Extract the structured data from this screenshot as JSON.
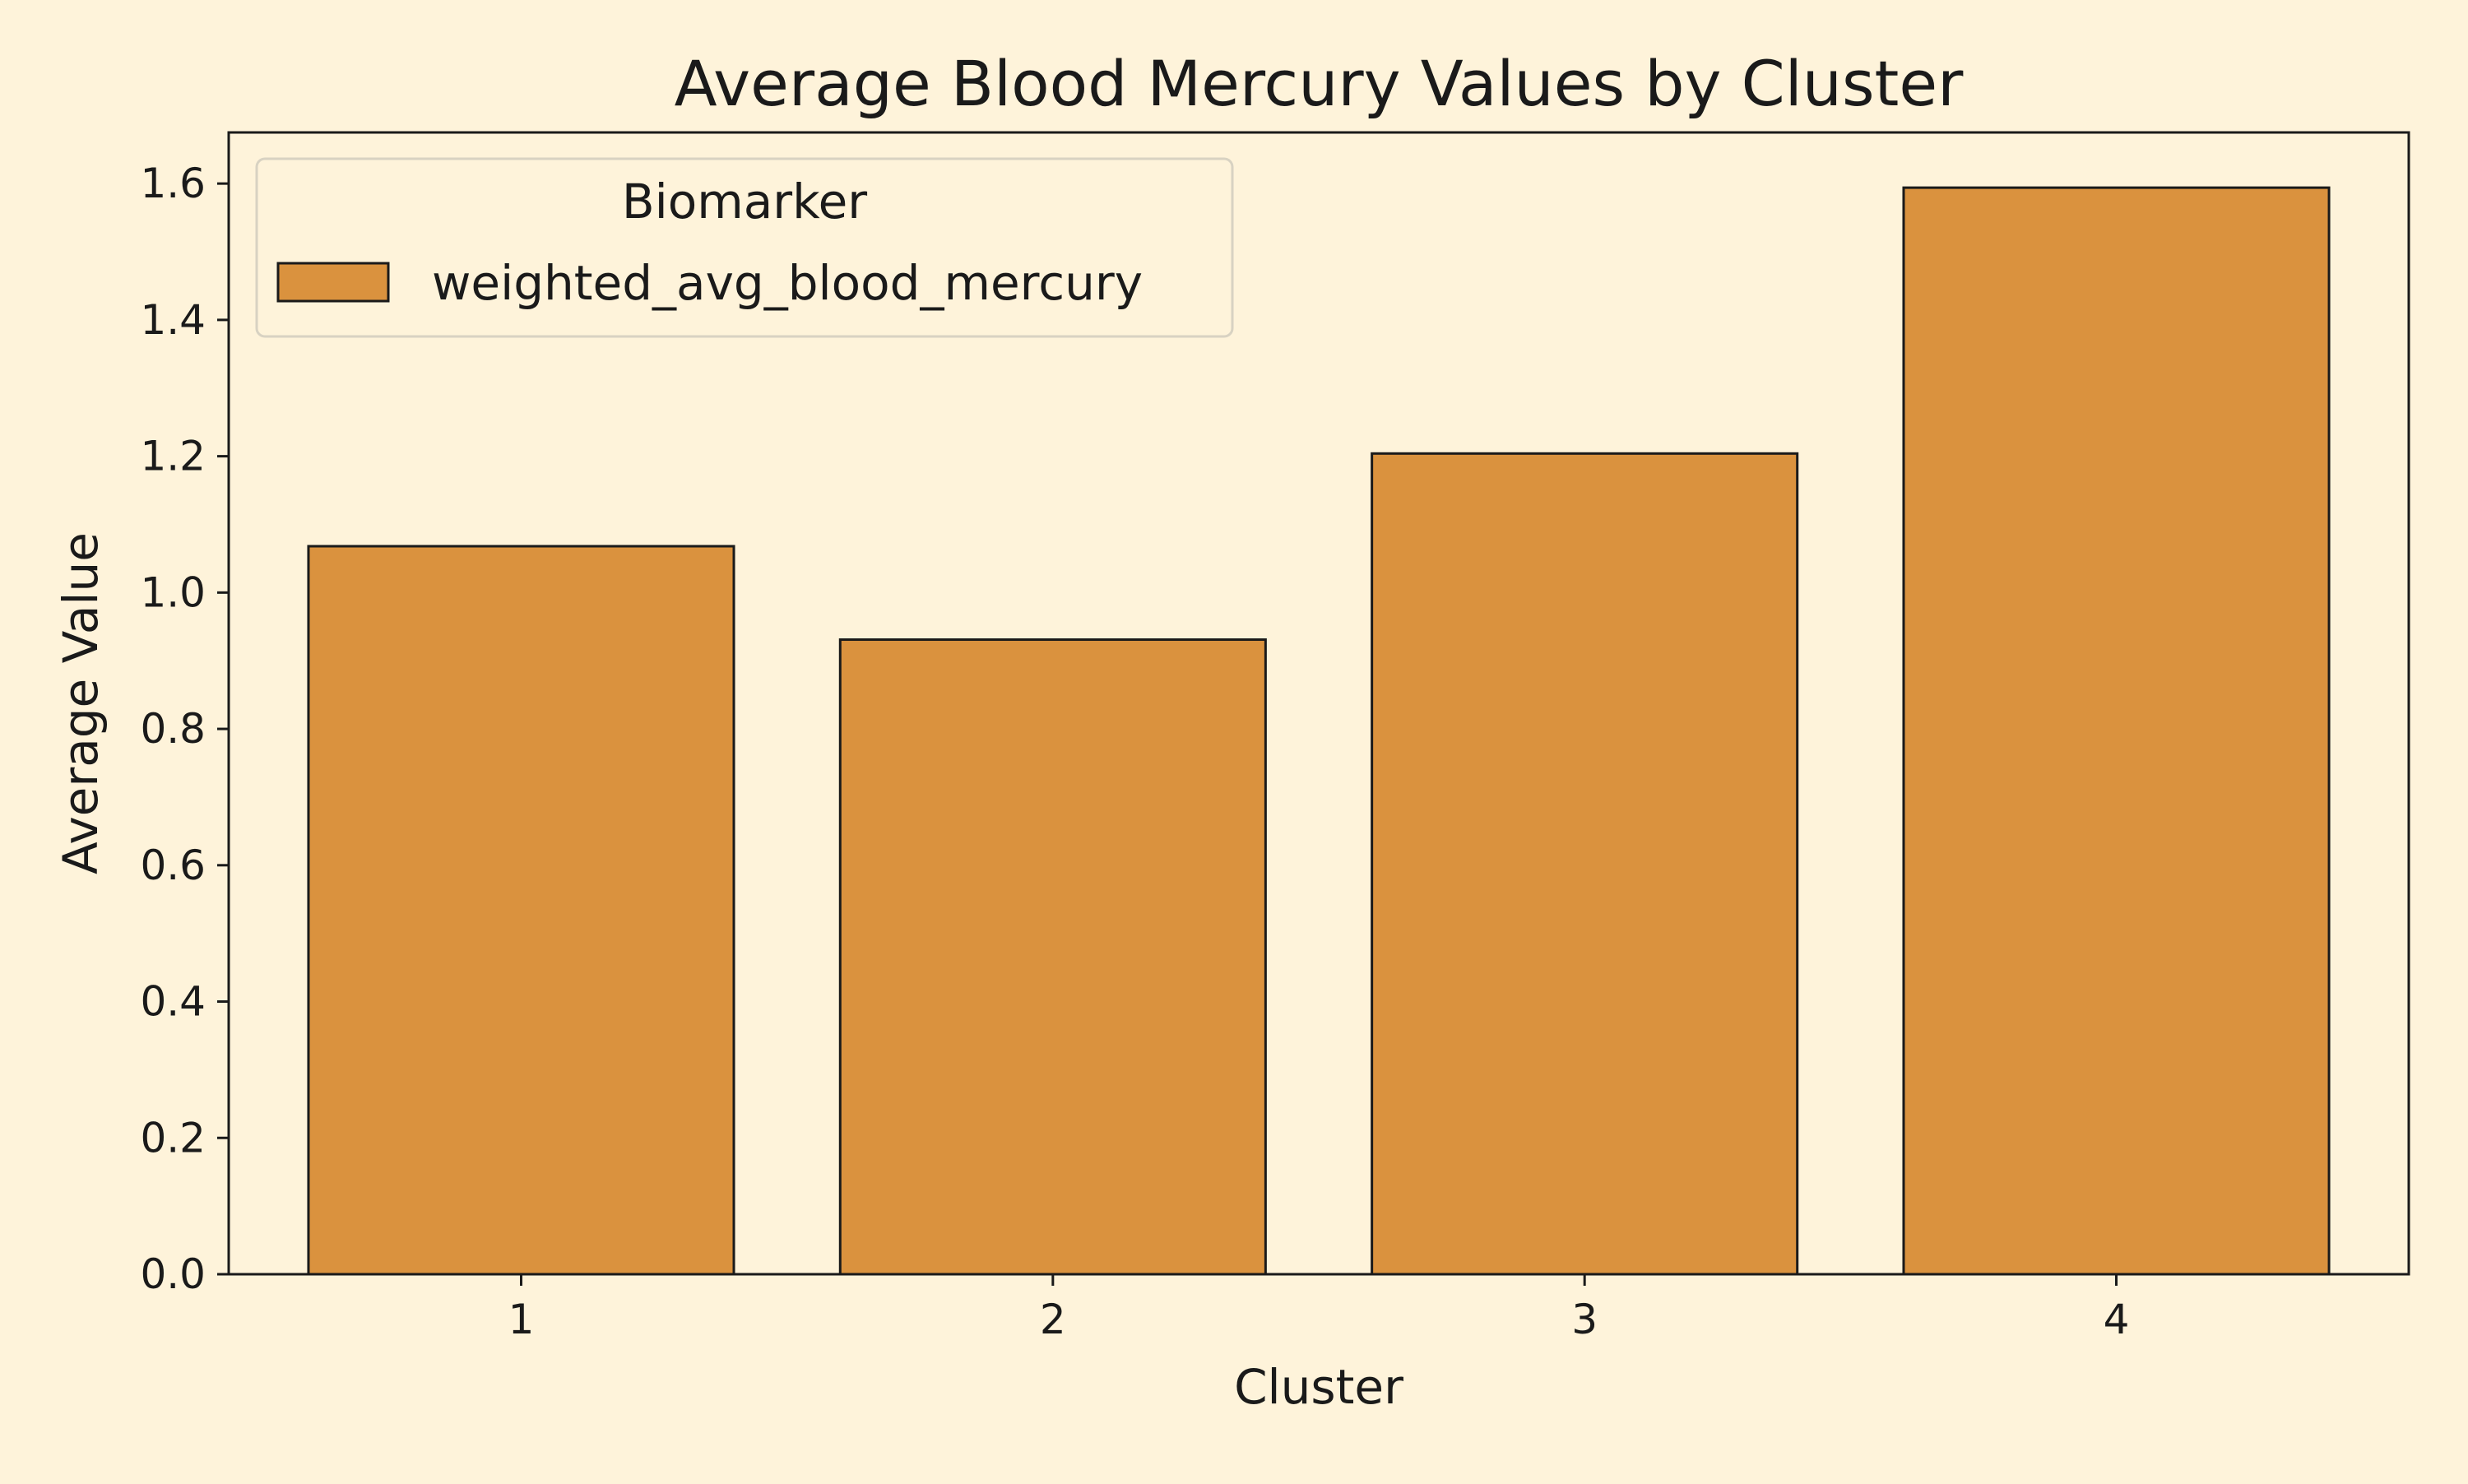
{
  "chart_data": {
    "type": "bar",
    "title": "Average Blood Mercury Values by Cluster",
    "xlabel": "Cluster",
    "ylabel": "Average Value",
    "categories": [
      "1",
      "2",
      "3",
      "4"
    ],
    "series": [
      {
        "name": "weighted_avg_blood_mercury",
        "values": [
          1.068,
          0.931,
          1.204,
          1.594
        ],
        "color": "#da923e"
      }
    ],
    "ylim": [
      0,
      1.675
    ],
    "yticks": [
      "0.0",
      "0.2",
      "0.4",
      "0.6",
      "0.8",
      "1.0",
      "1.2",
      "1.4",
      "1.6"
    ],
    "legend": {
      "title": "Biomarker",
      "placement": "top-left"
    },
    "grid": false,
    "colors": {
      "background": "#fef3da",
      "bar": "#da923e",
      "edge": "#1a1a1a"
    }
  }
}
